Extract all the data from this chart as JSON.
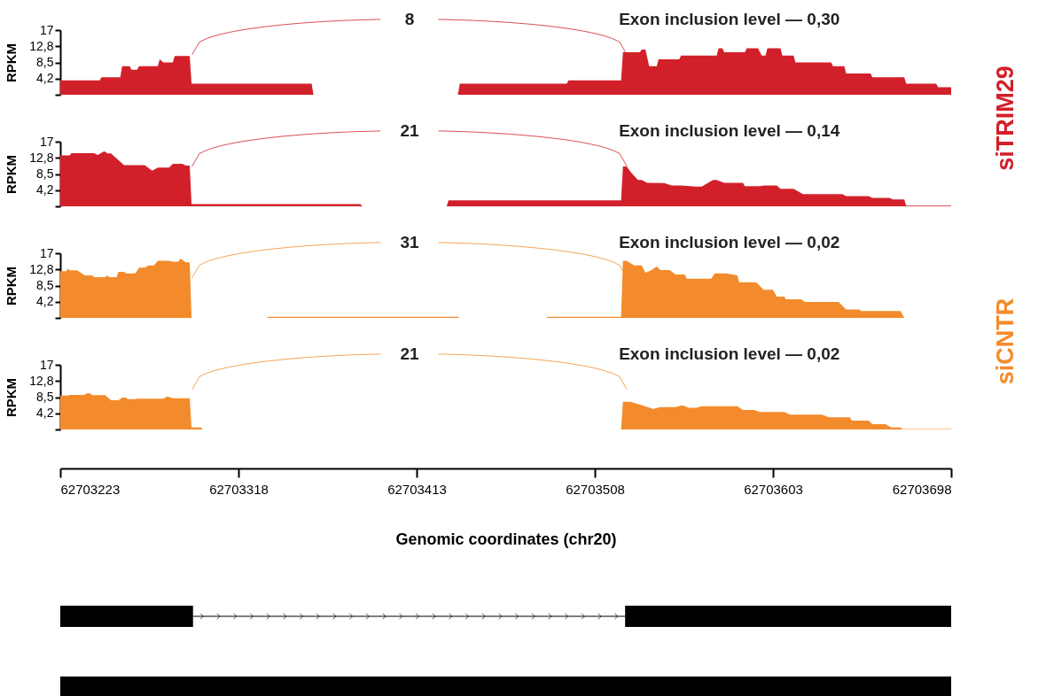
{
  "chart_data": [
    {
      "type": "area",
      "ylabel": "RPKM",
      "xlim": [
        62703223,
        62703698
      ],
      "ylim": [
        0,
        17
      ],
      "yticks": [
        {
          "value": 0,
          "label": null
        },
        {
          "value": 4.2,
          "label": "4,2"
        },
        {
          "value": 8.5,
          "label": "8,5"
        },
        {
          "value": 12.8,
          "label": "12,8"
        },
        17
      ],
      "tick_labels": "y",
      "annotations": [
        "Exon inclusion level — 0,30",
        "8"
      ],
      "series": [
        {
          "name": "siTRIM29",
          "color": "#d2202a",
          "x": [
            62703223,
            62703244,
            62703245,
            62703255,
            62703256,
            62703260,
            62703261,
            62703264,
            62703265,
            62703275,
            62703276,
            62703278,
            62703283,
            62703284,
            62703292,
            62703293,
            62703357,
            62703358,
            62703435,
            62703436,
            62703493,
            62703494,
            62703522,
            62703523,
            62703532,
            62703533,
            62703535,
            62703537,
            62703541,
            62703542,
            62703553,
            62703554,
            62703573,
            62703574,
            62703576,
            62703577,
            62703588,
            62703589,
            62703595,
            62703597,
            62703599,
            62703600,
            62703607,
            62703608,
            62703614,
            62703615,
            62703634,
            62703635,
            62703641,
            62703642,
            62703655,
            62703656,
            62703673,
            62703674,
            62703690,
            62703691,
            62703698
          ],
          "values": [
            3.8,
            3.8,
            4.6,
            4.6,
            7.5,
            7.5,
            6.6,
            6.6,
            7.5,
            7.5,
            9.3,
            8.5,
            8.5,
            10.2,
            10.2,
            2.9,
            2.9,
            0,
            0,
            2.9,
            2.9,
            3.8,
            3.8,
            11.2,
            11.2,
            11.9,
            11.9,
            7.5,
            7.5,
            9.3,
            9.3,
            10.3,
            10.3,
            12.2,
            12.2,
            11.2,
            11.2,
            12.2,
            12.2,
            10.3,
            10.3,
            12.2,
            12.2,
            10.3,
            10.3,
            8.5,
            8.5,
            7.5,
            7.5,
            5.6,
            5.6,
            4.6,
            4.6,
            2.9,
            2.9,
            2.0,
            2.0
          ]
        }
      ]
    },
    {
      "type": "area",
      "ylabel": "RPKM",
      "xlim": [
        62703223,
        62703698
      ],
      "ylim": [
        0,
        17
      ],
      "yticks": [
        {
          "value": 0,
          "label": null
        },
        {
          "value": 4.2,
          "label": "4,2"
        },
        {
          "value": 8.5,
          "label": "8,5"
        },
        {
          "value": 12.8,
          "label": "12,8"
        },
        17
      ],
      "tick_labels": "y",
      "annotations": [
        "Exon inclusion level — 0,14",
        "21"
      ],
      "series": [
        {
          "color": "#d2202a",
          "x": [
            62703223,
            62703228,
            62703229,
            62703241,
            62703243,
            62703246,
            62703247,
            62703248,
            62703250,
            62703257,
            62703268,
            62703272,
            62703275,
            62703281,
            62703283,
            62703288,
            62703290,
            62703292,
            62703293,
            62703383,
            62703384,
            62703429,
            62703430,
            62703522,
            62703523,
            62703525,
            62703527,
            62703531,
            62703533,
            62703536,
            62703545,
            62703549,
            62703554,
            62703562,
            62703565,
            62703571,
            62703573,
            62703577,
            62703587,
            62703588,
            62703596,
            62703598,
            62703605,
            62703607,
            62703614,
            62703619,
            62703640,
            62703642,
            62703654,
            62703656,
            62703665,
            62703667,
            62703673,
            62703674,
            62703698
          ],
          "values": [
            13.4,
            13.4,
            14.0,
            14.0,
            13.5,
            14.4,
            14.4,
            13.9,
            13.9,
            10.8,
            10.8,
            9.4,
            10.2,
            10.2,
            11.2,
            11.2,
            10.7,
            10.7,
            0.6,
            0.6,
            0,
            0,
            1.6,
            1.6,
            10.5,
            10.5,
            9.1,
            6.9,
            6.9,
            6.2,
            6.1,
            5.5,
            5.5,
            5.2,
            5.2,
            6.9,
            6.9,
            6.2,
            6.2,
            5.3,
            5.3,
            5.5,
            5.5,
            4.6,
            4.6,
            3.2,
            3.2,
            2.7,
            2.7,
            2.2,
            2.2,
            1.8,
            1.8,
            0.2,
            0.2
          ]
        }
      ]
    },
    {
      "type": "area",
      "ylabel": "RPKM",
      "xlim": [
        62703223,
        62703698
      ],
      "ylim": [
        0,
        17
      ],
      "yticks": [
        {
          "value": 0,
          "label": null
        },
        {
          "value": 4.2,
          "label": "4,2"
        },
        {
          "value": 8.5,
          "label": "8,5"
        },
        {
          "value": 12.8,
          "label": "12,8"
        },
        17
      ],
      "tick_labels": "y",
      "annotations": [
        "Exon inclusion level — 0,02",
        "31"
      ],
      "series": [
        {
          "name": "siCNTR",
          "color": "#f38b2c",
          "x": [
            62703223,
            62703226,
            62703227,
            62703228,
            62703232,
            62703236,
            62703240,
            62703241,
            62703247,
            62703248,
            62703249,
            62703253,
            62703254,
            62703257,
            62703258,
            62703263,
            62703265,
            62703268,
            62703270,
            62703273,
            62703275,
            62703281,
            62703283,
            62703286,
            62703287,
            62703290,
            62703292,
            62703293,
            62703333,
            62703334,
            62703435,
            62703436,
            62703482,
            62703483,
            62703522,
            62703523,
            62703525,
            62703529,
            62703533,
            62703535,
            62703538,
            62703541,
            62703543,
            62703548,
            62703551,
            62703556,
            62703557,
            62703570,
            62703572,
            62703578,
            62703584,
            62703585,
            62703594,
            62703598,
            62703603,
            62703605,
            62703609,
            62703610,
            62703618,
            62703620,
            62703638,
            62703642,
            62703649,
            62703650,
            62703671,
            62703673,
            62703698
          ],
          "values": [
            12.3,
            12.3,
            12.9,
            12.5,
            12.5,
            11.2,
            11.2,
            10.7,
            10.7,
            11.2,
            10.7,
            10.7,
            12.1,
            12.1,
            11.7,
            11.7,
            13.2,
            13.2,
            13.8,
            13.8,
            15.0,
            15.0,
            14.8,
            14.8,
            15.6,
            14.6,
            14.6,
            0,
            0,
            0.3,
            0.3,
            0,
            0,
            0.3,
            0.3,
            15.0,
            15.0,
            13.8,
            13.8,
            11.9,
            12.5,
            13.5,
            12.6,
            12.6,
            11.4,
            11.4,
            10.3,
            10.3,
            11.7,
            11.7,
            11.2,
            9.4,
            9.4,
            7.4,
            7.4,
            5.6,
            5.6,
            4.9,
            4.9,
            4.2,
            4.2,
            2.2,
            2.2,
            1.8,
            1.8,
            0,
            0
          ]
        }
      ]
    },
    {
      "type": "area",
      "ylabel": "RPKM",
      "xlabel": "Genomic coordinates (chr20)",
      "xlim": [
        62703223,
        62703698
      ],
      "xticks": [
        62703223,
        62703318,
        62703413,
        62703508,
        62703603,
        62703698
      ],
      "ylim": [
        0,
        17
      ],
      "yticks": [
        {
          "value": 0,
          "label": null
        },
        {
          "value": 4.2,
          "label": "4,2"
        },
        {
          "value": 8.5,
          "label": "8,5"
        },
        {
          "value": 12.8,
          "label": "12,8"
        },
        17
      ],
      "annotations": [
        "Exon inclusion level — 0,02",
        "21"
      ],
      "series": [
        {
          "color": "#f38b2c",
          "x": [
            62703223,
            62703227,
            62703228,
            62703236,
            62703237,
            62703239,
            62703240,
            62703247,
            62703250,
            62703254,
            62703256,
            62703258,
            62703259,
            62703263,
            62703264,
            62703278,
            62703280,
            62703283,
            62703292,
            62703293,
            62703298,
            62703299,
            62703522,
            62703523,
            62703527,
            62703533,
            62703539,
            62703543,
            62703551,
            62703554,
            62703555,
            62703558,
            62703562,
            62703565,
            62703584,
            62703587,
            62703593,
            62703596,
            62703609,
            62703612,
            62703629,
            62703633,
            62703644,
            62703645,
            62703654,
            62703656,
            62703663,
            62703666,
            62703671,
            62703672,
            62703698
          ],
          "values": [
            8.9,
            8.9,
            9.1,
            9.1,
            9.5,
            9.5,
            9.0,
            9.0,
            7.7,
            7.7,
            8.4,
            8.4,
            8.0,
            8.0,
            8.1,
            8.1,
            8.7,
            8.2,
            8.2,
            0.5,
            0.5,
            0,
            0,
            7.3,
            7.3,
            6.4,
            5.4,
            5.9,
            5.9,
            6.3,
            6.3,
            5.7,
            5.7,
            6.1,
            6.1,
            5.1,
            5.1,
            4.6,
            4.6,
            3.9,
            3.9,
            3.2,
            3.2,
            2.3,
            2.3,
            1.4,
            1.4,
            0.5,
            0.5,
            0.1,
            0.1
          ]
        }
      ]
    }
  ]
}
